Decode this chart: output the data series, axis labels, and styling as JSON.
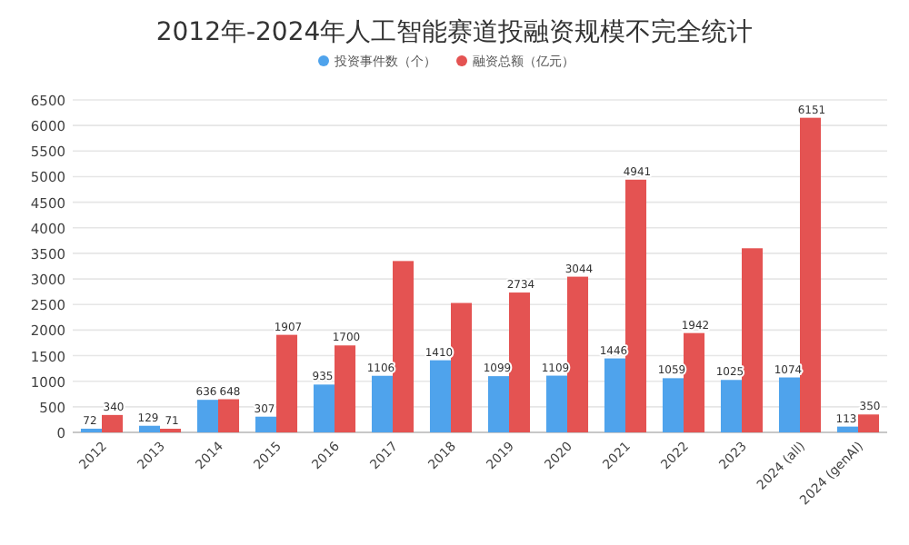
{
  "chart_data": {
    "type": "bar",
    "title": "2012年-2024年人工智能赛道投融资规模不完全统计",
    "categories": [
      "2012",
      "2013",
      "2014",
      "2015",
      "2016",
      "2017",
      "2018",
      "2019",
      "2020",
      "2021",
      "2022",
      "2023",
      "2024 (all)",
      "2024 (genAI)"
    ],
    "series": [
      {
        "name": "投资事件数（个）",
        "color": "#4fa3ec",
        "values": [
          72,
          129,
          636,
          307,
          935,
          1106,
          1410,
          1099,
          1109,
          1446,
          1059,
          1025,
          1074,
          113
        ],
        "value_labels": [
          "72",
          "129",
          "636",
          "307",
          "935",
          "1106",
          "1410",
          "1099",
          "1109",
          "1446",
          "1059",
          "1025",
          "1074",
          "113"
        ]
      },
      {
        "name": "融资总额（亿元）",
        "color": "#e45352",
        "values": [
          340,
          71,
          648,
          1907,
          1700,
          3350,
          2530,
          2734,
          3044,
          4941,
          1942,
          3600,
          6151,
          350
        ],
        "value_labels": [
          "340",
          "71",
          "648",
          "1907",
          "1700",
          null,
          null,
          "2734",
          "3044",
          "4941",
          "1942",
          null,
          "6151",
          "350"
        ]
      }
    ],
    "ylim": [
      0,
      6500
    ],
    "yticks": [
      0,
      500,
      1000,
      1500,
      2000,
      2500,
      3000,
      3500,
      4000,
      4500,
      5000,
      5500,
      6000,
      6500
    ],
    "grid": "y",
    "legend": "top"
  }
}
